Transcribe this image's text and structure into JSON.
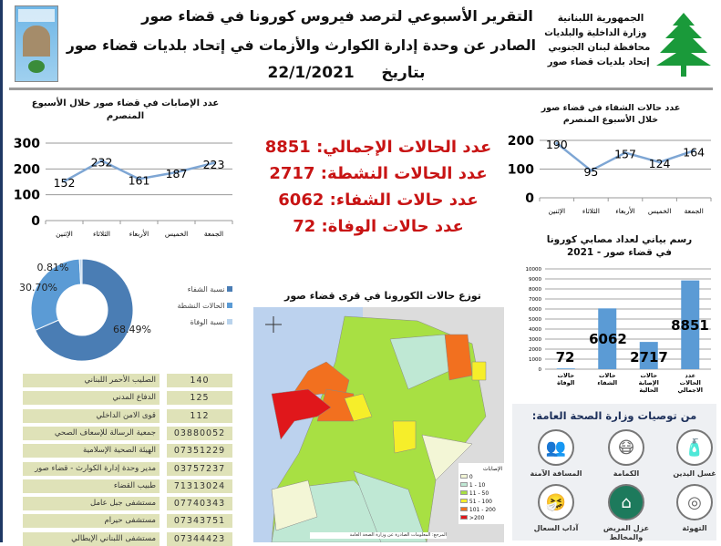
{
  "header": {
    "title1": "التقرير الأسبوعي لترصد فيروس كورونا في قضاء صور",
    "title2": "الصادر عن وحدة إدارة الكوارث والأزمات في إتحاد بلديات قضاء صور",
    "date_label": "بتاريخ",
    "date": "22/1/2021",
    "org_lines": [
      "الجمهورية اللبنانية",
      "وزارة الداخلية والبلديات",
      "محافظة لبنان الجنوبي",
      "إتحاد بلديات قضاء صور"
    ],
    "logo_text": "UNION OF TYRE REGION MUNICIPALITIES"
  },
  "stats": [
    {
      "label": "عدد الحالات الإجمالي:",
      "value": "8851"
    },
    {
      "label": "عدد الحالات النشطة:",
      "value": "2717"
    },
    {
      "label": "عدد حالات الشفاء:",
      "value": "6062"
    },
    {
      "label": "عدد حالات الوفاة:",
      "value": "72"
    }
  ],
  "chart_data": [
    {
      "type": "line",
      "title": "عدد الإصابات في قضاء صور خلال الأسبوع المنصرم",
      "categories": [
        "الإثنين",
        "الثلاثاء",
        "الأربعاء",
        "الخميس",
        "الجمعة"
      ],
      "values": [
        152,
        232,
        161,
        187,
        223
      ],
      "ylim": [
        0,
        300
      ],
      "yticks": [
        0,
        100,
        200,
        300
      ],
      "grid": true,
      "color": "#7ea6d4"
    },
    {
      "type": "line",
      "title": "عدد حالات الشفاء في قضاء صور خلال الأسبوع المنصرم",
      "categories": [
        "الإثنين",
        "الثلاثاء",
        "الأربعاء",
        "الخميس",
        "الجمعة"
      ],
      "values": [
        190,
        95,
        157,
        124,
        164
      ],
      "ylim": [
        0,
        200
      ],
      "yticks": [
        0,
        100,
        200
      ],
      "grid": true,
      "color": "#7ea6d4"
    },
    {
      "type": "pie",
      "donut": true,
      "slices": [
        {
          "name": "نسبة الشفاء",
          "value": 68.49,
          "label": "68.49%",
          "color": "#4a7db4"
        },
        {
          "name": "الحالات النشطة",
          "value": 30.7,
          "label": "30.70%",
          "color": "#5b9bd5"
        },
        {
          "name": "نسبة الوفاة",
          "value": 0.81,
          "label": "0.81%",
          "color": "#b9d3ec"
        }
      ],
      "legend": "right"
    },
    {
      "type": "bar",
      "title": "رسم بياني لعداد مصابي كورونا في قضاء صور - 2021",
      "categories": [
        "حالات الوفاة",
        "حالات الشفاء",
        "حالات الإصابة الحالية",
        "عدد الحالات الاجمالي"
      ],
      "values": [
        72,
        6062,
        2717,
        8851
      ],
      "ylim": [
        0,
        10000
      ],
      "yticks": [
        0,
        1000,
        2000,
        3000,
        4000,
        5000,
        6000,
        7000,
        8000,
        9000,
        10000
      ],
      "grid": true,
      "color": "#5b9bd5"
    }
  ],
  "map": {
    "title": "توزع حالات الكورونا في قرى قضاء صور",
    "legend_title": "الإصابات",
    "legend": [
      {
        "label": "0",
        "color": "#f3f6d6"
      },
      {
        "label": "1 - 10",
        "color": "#bfe8d4"
      },
      {
        "label": "11 - 50",
        "color": "#a8e043"
      },
      {
        "label": "51 - 100",
        "color": "#f6ee2a"
      },
      {
        "label": "101 - 200",
        "color": "#f2701f"
      },
      {
        "label": ">200",
        "color": "#e0171b"
      }
    ],
    "source": "المرجع: المعلومات الصادرة عن وزارة الصحة العامة"
  },
  "contacts": [
    {
      "name": "الصليب الأحمر اللبناني",
      "number": "140"
    },
    {
      "name": "الدفاع المدني",
      "number": "125"
    },
    {
      "name": "قوى الامن الداخلي",
      "number": "112"
    },
    {
      "name": "جمعية الرسالة للإسعاف الصحي",
      "number": "03880052"
    },
    {
      "name": "الهيئة الصحية الإسلامية",
      "number": "07351229"
    },
    {
      "name": "مدير وحدة إدارة الكوارث - قضاء صور",
      "number": "03757237"
    },
    {
      "name": "طبيب القضاء",
      "number": "71313024"
    },
    {
      "name": "مستشفى جبل عامل",
      "number": "07740343"
    },
    {
      "name": "مستشفى حيرام",
      "number": "07343751"
    },
    {
      "name": "مستشفى اللبناني الإيطالي",
      "number": "07344423"
    }
  ],
  "recommendations": {
    "title": "من توصيات وزارة الصحة العامة:",
    "items": [
      {
        "label": "غسل اليدين",
        "icon": "hand-sanitizer-icon"
      },
      {
        "label": "الكمامة",
        "icon": "mask-icon"
      },
      {
        "label": "المسافة الآمنة",
        "icon": "distance-icon"
      },
      {
        "label": "التهوئة",
        "icon": "ventilation-icon"
      },
      {
        "label": "عزل المريض والمخالط",
        "icon": "home-isolation-icon"
      },
      {
        "label": "آداب السعال",
        "icon": "cough-icon"
      }
    ]
  }
}
